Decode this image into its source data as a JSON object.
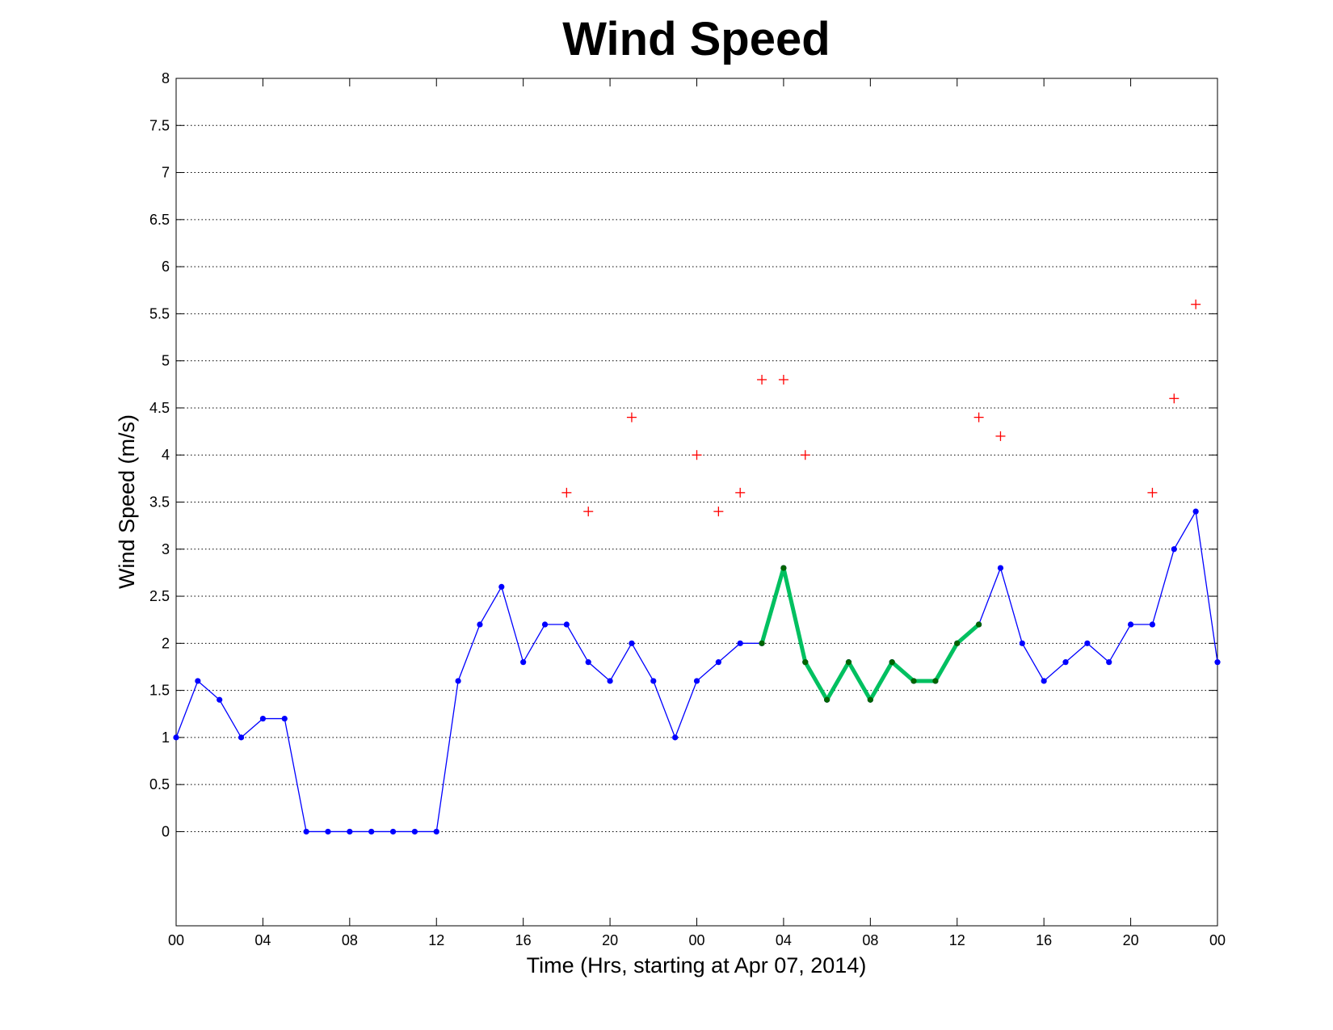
{
  "chart_data": {
    "type": "line",
    "title": "Wind Speed",
    "xlabel": "Time (Hrs, starting at Apr 07, 2014)",
    "ylabel": "Wind Speed (m/s)",
    "xlim": [
      0,
      48
    ],
    "ylim": [
      -1,
      8
    ],
    "x_ticks": [
      0,
      4,
      8,
      12,
      16,
      20,
      24,
      28,
      32,
      36,
      40,
      44,
      48
    ],
    "x_tick_labels": [
      "00",
      "04",
      "08",
      "12",
      "16",
      "20",
      "00",
      "04",
      "08",
      "12",
      "16",
      "20",
      "00"
    ],
    "y_ticks": [
      0,
      0.5,
      1,
      1.5,
      2,
      2.5,
      3,
      3.5,
      4,
      4.5,
      5,
      5.5,
      6,
      6.5,
      7,
      7.5,
      8
    ],
    "y_tick_labels": [
      "0",
      "0.5",
      "1",
      "1.5",
      "2",
      "2.5",
      "3",
      "3.5",
      "4",
      "4.5",
      "5",
      "5.5",
      "6",
      "6.5",
      "7",
      "7.5",
      "8"
    ],
    "grid": "horizontal dotted",
    "series": [
      {
        "style": "line-with-dots",
        "color": "#0000ff",
        "x": [
          0,
          1,
          2,
          3,
          4,
          5,
          6,
          7,
          8,
          9,
          10,
          11,
          12,
          13,
          14,
          15,
          16,
          17,
          18,
          19,
          20,
          21,
          22,
          23,
          24,
          25,
          26,
          27,
          28,
          29,
          30,
          31,
          32,
          33,
          34,
          35,
          36,
          37,
          38,
          39,
          40,
          41,
          42,
          43,
          44,
          45,
          46,
          47,
          48
        ],
        "values": [
          1.0,
          1.6,
          1.4,
          1.0,
          1.2,
          1.2,
          0,
          0,
          0,
          0,
          0,
          0,
          0,
          1.6,
          2.2,
          2.6,
          1.8,
          2.2,
          2.2,
          1.8,
          1.6,
          2.0,
          1.6,
          1.0,
          1.6,
          1.8,
          2.0,
          2.0,
          2.8,
          1.8,
          1.4,
          1.8,
          1.4,
          1.8,
          1.6,
          1.6,
          2.0,
          2.2,
          2.8,
          2.0,
          1.6,
          1.8,
          2.0,
          1.8,
          2.2,
          2.2,
          3.0,
          3.4,
          1.8
        ]
      },
      {
        "style": "thick-line",
        "color": "#00c060",
        "marker_color": "#006400",
        "x": [
          27,
          28,
          29,
          30,
          31,
          32,
          33,
          34,
          35,
          36,
          37
        ],
        "values": [
          2.0,
          2.8,
          1.8,
          1.4,
          1.8,
          1.4,
          1.8,
          1.6,
          1.6,
          2.0,
          2.2
        ]
      },
      {
        "style": "plus-markers",
        "color": "#ff0000",
        "x": [
          18,
          19,
          21,
          24,
          25,
          26,
          27,
          28,
          29,
          37,
          38,
          45,
          46,
          47
        ],
        "values": [
          3.6,
          3.4,
          4.4,
          4.0,
          3.4,
          3.6,
          4.8,
          4.8,
          4.0,
          4.4,
          4.2,
          3.6,
          4.6,
          5.6
        ]
      }
    ]
  }
}
